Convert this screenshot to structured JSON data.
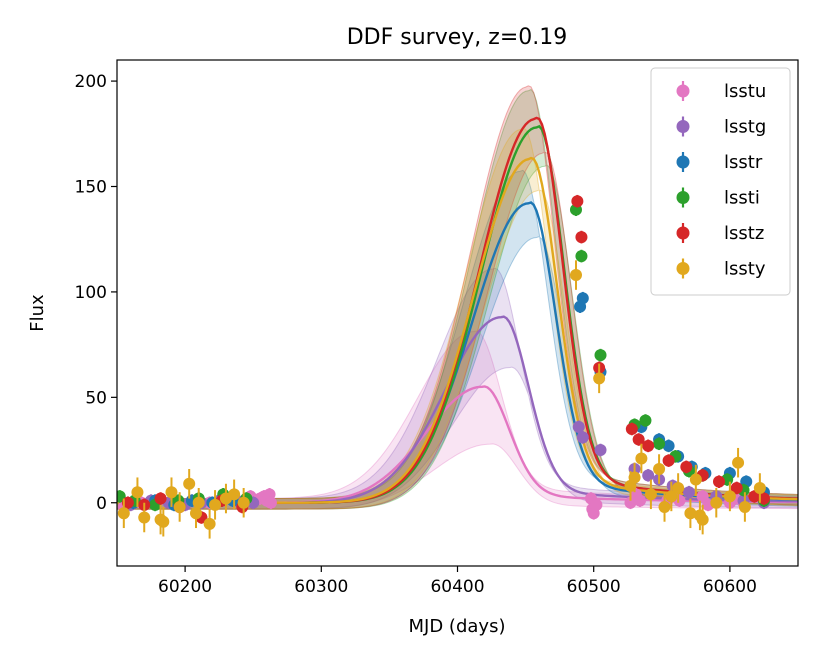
{
  "chart_data": {
    "type": "line",
    "title": "DDF survey, z=0.19",
    "xlabel": "MJD (days)",
    "ylabel": "Flux",
    "xlim": [
      60150,
      60650
    ],
    "ylim": [
      -30,
      210
    ],
    "xticks": [
      60200,
      60300,
      60400,
      60500,
      60600
    ],
    "yticks": [
      0,
      50,
      100,
      150,
      200
    ],
    "legend_position": "top-right",
    "series": [
      {
        "name": "lsstu",
        "color": "#e377c2",
        "model": {
          "peak_mjd": 60418,
          "peak_flux": 55,
          "band": 22
        },
        "points": [
          [
            60155,
            -2
          ],
          [
            60168,
            0
          ],
          [
            60180,
            1
          ],
          [
            60193,
            -1
          ],
          [
            60205,
            1
          ],
          [
            60218,
            0
          ],
          [
            60228,
            2
          ],
          [
            60238,
            1
          ],
          [
            60248,
            3
          ],
          [
            60255,
            2
          ],
          [
            60258,
            3
          ],
          [
            60260,
            1
          ],
          [
            60262,
            4
          ],
          [
            60263,
            0
          ],
          [
            60498,
            2
          ],
          [
            60499,
            -3
          ],
          [
            60500,
            -5
          ],
          [
            60502,
            -1
          ],
          [
            60527,
            0
          ],
          [
            60531,
            4
          ],
          [
            60534,
            1
          ],
          [
            60554,
            1
          ],
          [
            60558,
            3
          ],
          [
            60563,
            1
          ],
          [
            60580,
            3
          ],
          [
            60584,
            -1
          ],
          [
            60600,
            0
          ],
          [
            60604,
            2
          ],
          [
            60610,
            0
          ],
          [
            60622,
            3
          ]
        ]
      },
      {
        "name": "lsstg",
        "color": "#9467bd",
        "model": {
          "peak_mjd": 60432,
          "peak_flux": 88,
          "band": 19
        },
        "points": [
          [
            60160,
            -1
          ],
          [
            60175,
            1
          ],
          [
            60188,
            0
          ],
          [
            60200,
            -1
          ],
          [
            60212,
            0
          ],
          [
            60225,
            1
          ],
          [
            60238,
            1
          ],
          [
            60250,
            0
          ],
          [
            60489,
            36
          ],
          [
            60492,
            31
          ],
          [
            60505,
            25
          ],
          [
            60530,
            16
          ],
          [
            60540,
            13
          ],
          [
            60548,
            11
          ],
          [
            60558,
            8
          ],
          [
            60570,
            5
          ],
          [
            60590,
            3
          ],
          [
            60610,
            1
          ],
          [
            60625,
            0
          ]
        ]
      },
      {
        "name": "lsstr",
        "color": "#1f77b4",
        "model": {
          "peak_mjd": 60452,
          "peak_flux": 142,
          "band": 12
        },
        "points": [
          [
            60162,
            0
          ],
          [
            60178,
            1
          ],
          [
            60192,
            -1
          ],
          [
            60205,
            1
          ],
          [
            60220,
            0
          ],
          [
            60235,
            1
          ],
          [
            60490,
            93
          ],
          [
            60492,
            97
          ],
          [
            60505,
            62
          ],
          [
            60535,
            36
          ],
          [
            60548,
            30
          ],
          [
            60555,
            27
          ],
          [
            60562,
            22
          ],
          [
            60572,
            17
          ],
          [
            60582,
            14
          ],
          [
            60600,
            14
          ],
          [
            60612,
            10
          ],
          [
            60625,
            5
          ]
        ]
      },
      {
        "name": "lssti",
        "color": "#2ca02c",
        "model": {
          "peak_mjd": 60458,
          "peak_flux": 178,
          "band": 14
        },
        "points": [
          [
            60152,
            3
          ],
          [
            60163,
            1
          ],
          [
            60178,
            -1
          ],
          [
            60195,
            1
          ],
          [
            60210,
            2
          ],
          [
            60228,
            4
          ],
          [
            60245,
            2
          ],
          [
            60487,
            139
          ],
          [
            60491,
            117
          ],
          [
            60505,
            70
          ],
          [
            60530,
            37
          ],
          [
            60538,
            39
          ],
          [
            60548,
            28
          ],
          [
            60560,
            22
          ],
          [
            60570,
            15
          ],
          [
            60580,
            13
          ],
          [
            60598,
            11
          ],
          [
            60610,
            6
          ],
          [
            60625,
            1
          ]
        ]
      },
      {
        "name": "lsstz",
        "color": "#d62728",
        "model": {
          "peak_mjd": 60457,
          "peak_flux": 182,
          "band": 12
        },
        "points": [
          [
            60158,
            0
          ],
          [
            60170,
            -1
          ],
          [
            60182,
            2
          ],
          [
            60196,
            -2
          ],
          [
            60212,
            -7
          ],
          [
            60227,
            1
          ],
          [
            60242,
            -2
          ],
          [
            60488,
            143
          ],
          [
            60491,
            126
          ],
          [
            60504,
            64
          ],
          [
            60528,
            35
          ],
          [
            60533,
            30
          ],
          [
            60540,
            27
          ],
          [
            60555,
            20
          ],
          [
            60568,
            17
          ],
          [
            60580,
            13
          ],
          [
            60592,
            10
          ],
          [
            60605,
            7
          ],
          [
            60618,
            3
          ],
          [
            60625,
            2
          ]
        ]
      },
      {
        "name": "lssty",
        "color": "#e1a81e",
        "model": {
          "peak_mjd": 60453,
          "peak_flux": 163,
          "band": 11
        },
        "points": [
          [
            60155,
            -5
          ],
          [
            60165,
            5
          ],
          [
            60170,
            -7
          ],
          [
            60182,
            -8
          ],
          [
            60184,
            -9
          ],
          [
            60190,
            5
          ],
          [
            60196,
            -2
          ],
          [
            60203,
            9
          ],
          [
            60208,
            -5
          ],
          [
            60210,
            0
          ],
          [
            60218,
            -10
          ],
          [
            60222,
            -1
          ],
          [
            60230,
            2
          ],
          [
            60236,
            4
          ],
          [
            60243,
            0
          ],
          [
            60487,
            108
          ],
          [
            60504,
            59
          ],
          [
            60527,
            8
          ],
          [
            60530,
            12
          ],
          [
            60535,
            21
          ],
          [
            60542,
            4
          ],
          [
            60548,
            16
          ],
          [
            60552,
            -2
          ],
          [
            60557,
            3
          ],
          [
            60562,
            7
          ],
          [
            60571,
            -5
          ],
          [
            60575,
            11
          ],
          [
            60578,
            -6
          ],
          [
            60580,
            -8
          ],
          [
            60590,
            0
          ],
          [
            60600,
            3
          ],
          [
            60606,
            19
          ],
          [
            60611,
            -2
          ],
          [
            60622,
            7
          ]
        ]
      }
    ]
  }
}
